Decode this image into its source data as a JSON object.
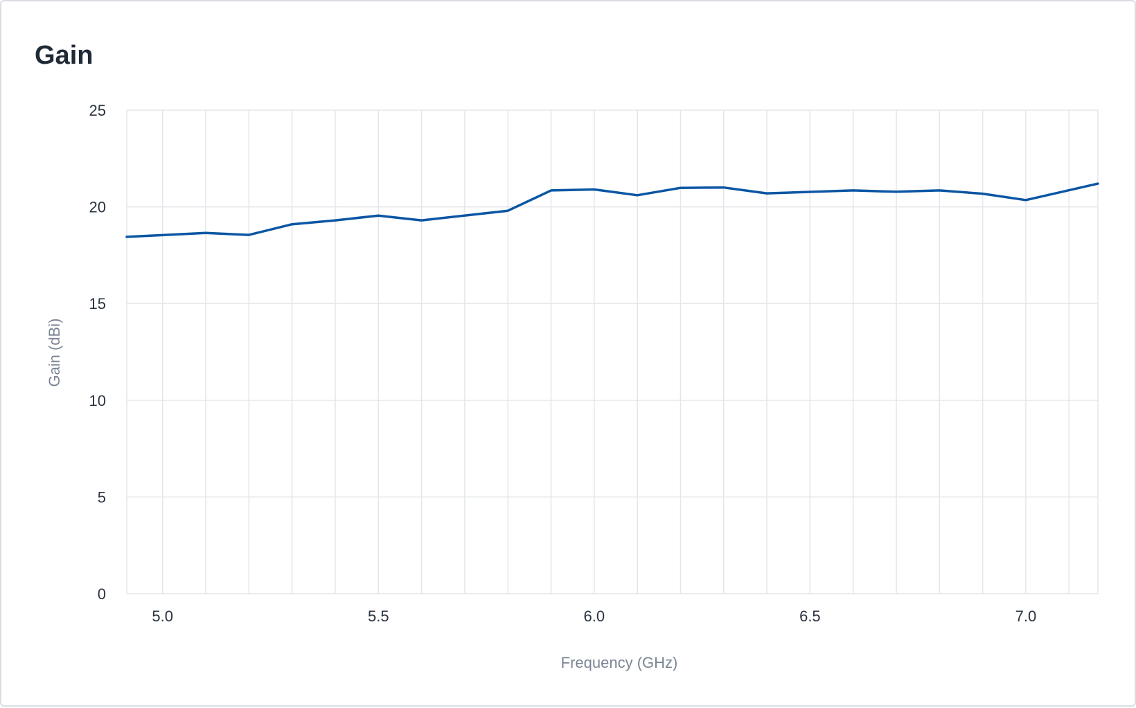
{
  "chart_data": {
    "type": "line",
    "title": "Gain",
    "xlabel": "Frequency (GHz)",
    "ylabel": "Gain (dBi)",
    "xlim": [
      4.917,
      7.167
    ],
    "ylim": [
      0,
      25
    ],
    "x_ticks": [
      "5.0",
      "5.5",
      "6.0",
      "6.5",
      "7.0"
    ],
    "y_ticks": [
      "0",
      "5",
      "10",
      "15",
      "20",
      "25"
    ],
    "grid": true,
    "line_color": "#0b56a4",
    "series": [
      {
        "x": [
          4.917,
          5.1,
          5.2,
          5.3,
          5.4,
          5.5,
          5.6,
          5.8,
          5.9,
          6.0,
          6.1,
          6.2,
          6.3,
          6.4,
          6.6,
          6.7,
          6.8,
          6.9,
          7.0,
          7.167
        ],
        "values": [
          18.45,
          18.65,
          18.55,
          19.1,
          19.3,
          19.55,
          19.3,
          19.8,
          20.85,
          20.9,
          20.6,
          20.98,
          21.0,
          20.7,
          20.85,
          20.78,
          20.85,
          20.68,
          20.35,
          21.2
        ]
      }
    ]
  }
}
